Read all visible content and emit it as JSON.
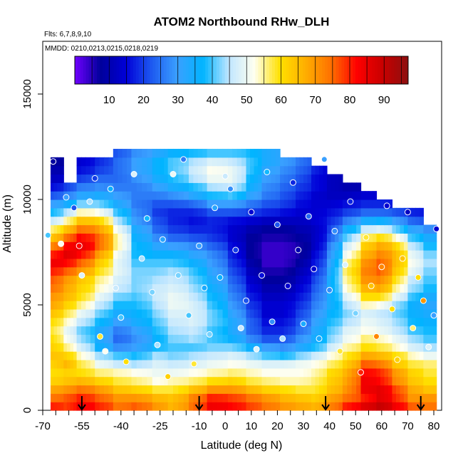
{
  "chart_data": {
    "type": "heatmap",
    "title": "ATOM2 Northbound RHw_DLH",
    "flights_note": "Flts: 6,7,8,9,10",
    "dates_note": "MMDD: 0210,0213,0215,0218,0219",
    "xlabel": "Latitude (deg N)",
    "ylabel": "Altitude (m)",
    "xlim": [
      -70,
      83
    ],
    "ylim": [
      0,
      17500
    ],
    "x_ticks": [
      "-70",
      "-55",
      "-40",
      "-25",
      "-10",
      "0",
      "10",
      "20",
      "30",
      "40",
      "50",
      "60",
      "70",
      "80"
    ],
    "x_tick_values": [
      -70,
      -55,
      -40,
      -25,
      -10,
      0,
      10,
      20,
      30,
      40,
      50,
      60,
      70,
      80
    ],
    "x_minor_ticks": [
      -65,
      -60,
      -50,
      -45,
      -35,
      -30,
      -20,
      -15,
      -5,
      5,
      15,
      25,
      35,
      45,
      55,
      65,
      75
    ],
    "y_ticks": [
      "0",
      "5000",
      "10000",
      "15000"
    ],
    "y_tick_values": [
      0,
      5000,
      10000,
      15000
    ],
    "colorbar": {
      "range": [
        0,
        97
      ],
      "tick_labels": [
        "10",
        "20",
        "30",
        "40",
        "50",
        "60",
        "70",
        "80",
        "90"
      ],
      "tick_values": [
        10,
        20,
        30,
        40,
        50,
        60,
        70,
        80,
        90
      ],
      "colors": [
        "#7000ff",
        "#00009a",
        "#0000d8",
        "#1e5af0",
        "#3aa0ff",
        "#00b4ff",
        "#bfe6ff",
        "#fffff0",
        "#ffe000",
        "#ffae00",
        "#ff7000",
        "#ff0000",
        "#c80000",
        "#8c1010"
      ]
    },
    "flight_dip_latitudes": [
      -55,
      -10,
      38.5,
      75
    ],
    "columns": [
      {
        "lat_min": -67,
        "lat_max": -62,
        "alt_top": 11800
      },
      {
        "lat_min": -62,
        "lat_max": -57,
        "alt_top": 10800
      },
      {
        "lat_min": -57,
        "lat_max": -50,
        "alt_top": 11800
      },
      {
        "lat_min": -50,
        "lat_max": -43,
        "alt_top": 11800
      },
      {
        "lat_min": -43,
        "lat_max": -36,
        "alt_top": 12400
      },
      {
        "lat_min": -36,
        "lat_max": -28,
        "alt_top": 12400
      },
      {
        "lat_min": -28,
        "lat_max": -22,
        "alt_top": 12400
      },
      {
        "lat_min": -22,
        "lat_max": -14,
        "alt_top": 12400
      },
      {
        "lat_min": -14,
        "lat_max": -7,
        "alt_top": 12400
      },
      {
        "lat_min": -7,
        "lat_max": 1,
        "alt_top": 12400
      },
      {
        "lat_min": 1,
        "lat_max": 8,
        "alt_top": 12400
      },
      {
        "lat_min": 8,
        "lat_max": 14,
        "alt_top": 12400
      },
      {
        "lat_min": 14,
        "lat_max": 21,
        "alt_top": 12400
      },
      {
        "lat_min": 21,
        "lat_max": 27,
        "alt_top": 12000
      },
      {
        "lat_min": 27,
        "lat_max": 33,
        "alt_top": 12000
      },
      {
        "lat_min": 33,
        "lat_max": 39,
        "alt_top": 11600
      },
      {
        "lat_min": 39,
        "lat_max": 45,
        "alt_top": 11200
      },
      {
        "lat_min": 45,
        "lat_max": 52,
        "alt_top": 10800
      },
      {
        "lat_min": 52,
        "lat_max": 58,
        "alt_top": 10400
      },
      {
        "lat_min": 58,
        "lat_max": 64,
        "alt_top": 10000
      },
      {
        "lat_min": 64,
        "lat_max": 70,
        "alt_top": 9600
      },
      {
        "lat_min": 70,
        "lat_max": 76,
        "alt_top": 9600
      },
      {
        "lat_min": 76,
        "lat_max": 81,
        "alt_top": 8800
      }
    ],
    "layers_alt": [
      0,
      400,
      800,
      1200,
      1600,
      2000,
      2400,
      2800,
      3200,
      3600,
      4000,
      4400,
      4800,
      5200,
      5600,
      6000,
      6400,
      6800,
      7200,
      7600,
      8000,
      8400,
      8800,
      9200,
      9600,
      10000,
      10400,
      10800,
      11200,
      11600,
      12000,
      12400
    ],
    "rh_grid": [
      [
        80,
        78,
        84,
        80,
        74,
        76,
        70,
        66,
        74,
        84,
        82,
        78,
        74,
        70,
        68,
        66,
        72,
        80,
        86,
        90,
        84,
        76,
        74
      ],
      [
        74,
        76,
        80,
        76,
        70,
        70,
        66,
        64,
        72,
        80,
        78,
        74,
        70,
        66,
        64,
        62,
        68,
        74,
        80,
        86,
        80,
        70,
        70
      ],
      [
        68,
        70,
        74,
        70,
        64,
        62,
        58,
        58,
        64,
        70,
        70,
        66,
        62,
        60,
        58,
        58,
        64,
        70,
        84,
        86,
        78,
        68,
        64
      ],
      [
        62,
        64,
        66,
        62,
        58,
        56,
        52,
        54,
        56,
        60,
        62,
        58,
        56,
        54,
        54,
        56,
        62,
        68,
        84,
        82,
        72,
        64,
        60
      ],
      [
        60,
        62,
        60,
        56,
        54,
        52,
        50,
        50,
        52,
        54,
        56,
        54,
        52,
        52,
        52,
        54,
        60,
        66,
        82,
        80,
        70,
        62,
        58
      ],
      [
        62,
        66,
        58,
        50,
        46,
        44,
        48,
        46,
        48,
        50,
        52,
        50,
        48,
        48,
        50,
        52,
        56,
        62,
        76,
        74,
        64,
        58,
        56
      ],
      [
        64,
        62,
        54,
        44,
        40,
        38,
        44,
        42,
        44,
        46,
        48,
        44,
        40,
        38,
        42,
        46,
        52,
        58,
        68,
        66,
        60,
        54,
        50
      ],
      [
        62,
        56,
        48,
        36,
        28,
        30,
        38,
        40,
        40,
        42,
        42,
        36,
        30,
        28,
        32,
        38,
        46,
        54,
        60,
        58,
        54,
        48,
        44
      ],
      [
        60,
        52,
        44,
        34,
        24,
        28,
        36,
        42,
        44,
        40,
        36,
        28,
        22,
        22,
        28,
        34,
        42,
        50,
        56,
        54,
        50,
        44,
        40
      ],
      [
        58,
        50,
        42,
        34,
        26,
        30,
        38,
        44,
        46,
        40,
        34,
        24,
        18,
        18,
        24,
        32,
        40,
        48,
        52,
        50,
        46,
        40,
        38
      ],
      [
        60,
        54,
        46,
        38,
        30,
        34,
        40,
        46,
        48,
        42,
        34,
        24,
        16,
        16,
        22,
        30,
        38,
        44,
        50,
        48,
        44,
        38,
        36
      ],
      [
        64,
        58,
        50,
        42,
        34,
        36,
        42,
        48,
        48,
        42,
        32,
        22,
        14,
        14,
        20,
        28,
        36,
        42,
        48,
        46,
        42,
        36,
        34
      ],
      [
        68,
        62,
        56,
        46,
        38,
        38,
        44,
        50,
        48,
        40,
        30,
        20,
        14,
        14,
        18,
        26,
        34,
        44,
        54,
        52,
        44,
        36,
        32
      ],
      [
        70,
        66,
        60,
        50,
        42,
        40,
        46,
        50,
        46,
        38,
        28,
        18,
        12,
        12,
        16,
        24,
        34,
        48,
        60,
        60,
        50,
        40,
        34
      ],
      [
        74,
        68,
        62,
        54,
        46,
        42,
        46,
        48,
        44,
        36,
        26,
        16,
        10,
        10,
        14,
        22,
        34,
        52,
        66,
        68,
        56,
        44,
        38
      ],
      [
        76,
        70,
        64,
        56,
        48,
        42,
        44,
        46,
        42,
        34,
        24,
        14,
        8,
        8,
        12,
        20,
        34,
        54,
        70,
        72,
        60,
        46,
        40
      ],
      [
        80,
        76,
        70,
        60,
        50,
        42,
        42,
        44,
        40,
        32,
        22,
        12,
        6,
        6,
        10,
        18,
        32,
        56,
        72,
        76,
        64,
        50,
        42
      ],
      [
        84,
        82,
        76,
        64,
        50,
        40,
        40,
        40,
        36,
        30,
        20,
        10,
        4,
        4,
        8,
        16,
        30,
        54,
        70,
        76,
        66,
        52,
        44
      ],
      [
        80,
        86,
        82,
        70,
        52,
        38,
        36,
        36,
        32,
        28,
        18,
        8,
        4,
        4,
        6,
        14,
        28,
        50,
        66,
        72,
        66,
        50,
        42
      ],
      [
        72,
        82,
        86,
        76,
        56,
        38,
        32,
        30,
        28,
        24,
        16,
        8,
        4,
        4,
        6,
        12,
        26,
        46,
        62,
        68,
        62,
        46,
        38
      ],
      [
        64,
        74,
        82,
        76,
        56,
        36,
        28,
        24,
        22,
        20,
        14,
        8,
        6,
        6,
        8,
        12,
        22,
        40,
        56,
        60,
        54,
        40,
        34
      ],
      [
        56,
        64,
        74,
        70,
        52,
        34,
        24,
        20,
        18,
        18,
        14,
        10,
        8,
        8,
        10,
        12,
        20,
        34,
        46,
        48,
        42,
        32,
        28
      ],
      [
        46,
        54,
        64,
        62,
        46,
        30,
        22,
        18,
        16,
        18,
        16,
        14,
        12,
        12,
        12,
        14,
        18,
        26,
        34,
        36,
        30,
        24,
        20
      ],
      [
        38,
        44,
        54,
        52,
        40,
        28,
        20,
        18,
        18,
        22,
        22,
        20,
        18,
        16,
        14,
        14,
        16,
        20,
        24,
        24,
        22,
        18,
        16
      ],
      [
        30,
        34,
        42,
        42,
        34,
        26,
        22,
        22,
        24,
        30,
        30,
        26,
        22,
        20,
        16,
        14,
        14,
        16,
        18,
        18,
        16,
        14,
        12
      ],
      [
        22,
        26,
        32,
        34,
        30,
        26,
        26,
        28,
        32,
        38,
        40,
        32,
        26,
        22,
        18,
        14,
        12,
        12,
        14,
        14,
        12,
        10,
        10
      ],
      [
        16,
        20,
        26,
        28,
        26,
        26,
        30,
        34,
        38,
        44,
        46,
        36,
        28,
        24,
        20,
        16,
        12,
        10,
        10,
        10,
        10,
        8,
        8
      ],
      [
        12,
        14,
        20,
        24,
        24,
        28,
        34,
        38,
        44,
        50,
        50,
        38,
        30,
        26,
        22,
        16,
        12,
        10,
        8,
        8,
        8,
        8,
        8
      ],
      [
        10,
        10,
        16,
        20,
        24,
        30,
        36,
        40,
        46,
        52,
        50,
        40,
        32,
        28,
        24,
        18,
        12,
        10,
        8,
        8,
        8,
        8,
        8
      ],
      [
        8,
        8,
        14,
        18,
        24,
        30,
        36,
        40,
        44,
        48,
        46,
        40,
        34,
        30,
        26,
        20,
        14,
        10,
        8,
        8,
        8,
        8,
        8
      ],
      [
        6,
        6,
        12,
        16,
        22,
        28,
        32,
        36,
        38,
        40,
        40,
        38,
        34,
        30,
        26,
        20,
        14,
        10,
        8,
        8,
        8,
        8,
        8
      ],
      [
        6,
        6,
        10,
        14,
        20,
        26,
        28,
        30,
        30,
        32,
        32,
        30,
        30,
        28,
        24,
        18,
        12,
        10,
        8,
        8,
        8,
        8,
        8
      ]
    ],
    "sample_points": [
      [
        -68,
        8300,
        40
      ],
      [
        -66,
        11800,
        8
      ],
      [
        -63,
        7900,
        52
      ],
      [
        -61,
        10100,
        30
      ],
      [
        -58,
        9600,
        22
      ],
      [
        -56,
        7800,
        82
      ],
      [
        -55,
        6400,
        48
      ],
      [
        -52,
        9900,
        44
      ],
      [
        -50,
        11000,
        20
      ],
      [
        -48,
        3500,
        58
      ],
      [
        -46,
        2800,
        52
      ],
      [
        -44,
        10500,
        36
      ],
      [
        -42,
        5800,
        46
      ],
      [
        -40,
        4400,
        40
      ],
      [
        -38,
        2300,
        60
      ],
      [
        -35,
        11200,
        48
      ],
      [
        -32,
        7200,
        44
      ],
      [
        -30,
        9100,
        38
      ],
      [
        -28,
        5600,
        42
      ],
      [
        -26,
        3100,
        44
      ],
      [
        -24,
        8100,
        32
      ],
      [
        -22,
        1600,
        62
      ],
      [
        -20,
        11200,
        50
      ],
      [
        -18,
        6400,
        42
      ],
      [
        -16,
        11900,
        26
      ],
      [
        -14,
        4500,
        40
      ],
      [
        -12,
        2200,
        58
      ],
      [
        -10,
        7800,
        30
      ],
      [
        -8,
        5800,
        34
      ],
      [
        -6,
        3600,
        42
      ],
      [
        -4,
        9600,
        32
      ],
      [
        -2,
        6300,
        36
      ],
      [
        0,
        11100,
        46
      ],
      [
        2,
        10500,
        28
      ],
      [
        4,
        7600,
        20
      ],
      [
        6,
        3900,
        46
      ],
      [
        8,
        5200,
        22
      ],
      [
        10,
        9400,
        14
      ],
      [
        12,
        2900,
        48
      ],
      [
        14,
        6400,
        16
      ],
      [
        16,
        11300,
        38
      ],
      [
        18,
        4200,
        28
      ],
      [
        20,
        8800,
        22
      ],
      [
        22,
        3400,
        44
      ],
      [
        24,
        5900,
        14
      ],
      [
        26,
        10800,
        18
      ],
      [
        28,
        7600,
        10
      ],
      [
        30,
        4100,
        34
      ],
      [
        32,
        9200,
        24
      ],
      [
        34,
        6700,
        14
      ],
      [
        36,
        3400,
        34
      ],
      [
        38,
        11900,
        30
      ],
      [
        40,
        5700,
        28
      ],
      [
        42,
        8500,
        28
      ],
      [
        44,
        2800,
        58
      ],
      [
        46,
        6900,
        48
      ],
      [
        48,
        9900,
        18
      ],
      [
        50,
        4600,
        42
      ],
      [
        52,
        1800,
        80
      ],
      [
        54,
        8200,
        58
      ],
      [
        56,
        5900,
        64
      ],
      [
        58,
        3500,
        72
      ],
      [
        60,
        6800,
        72
      ],
      [
        62,
        9700,
        14
      ],
      [
        64,
        4800,
        60
      ],
      [
        66,
        2400,
        62
      ],
      [
        68,
        7200,
        64
      ],
      [
        70,
        9400,
        12
      ],
      [
        72,
        3900,
        56
      ],
      [
        74,
        6300,
        60
      ],
      [
        76,
        5200,
        70
      ],
      [
        78,
        3000,
        48
      ],
      [
        80,
        4500,
        30
      ],
      [
        81,
        8600,
        14
      ]
    ]
  }
}
